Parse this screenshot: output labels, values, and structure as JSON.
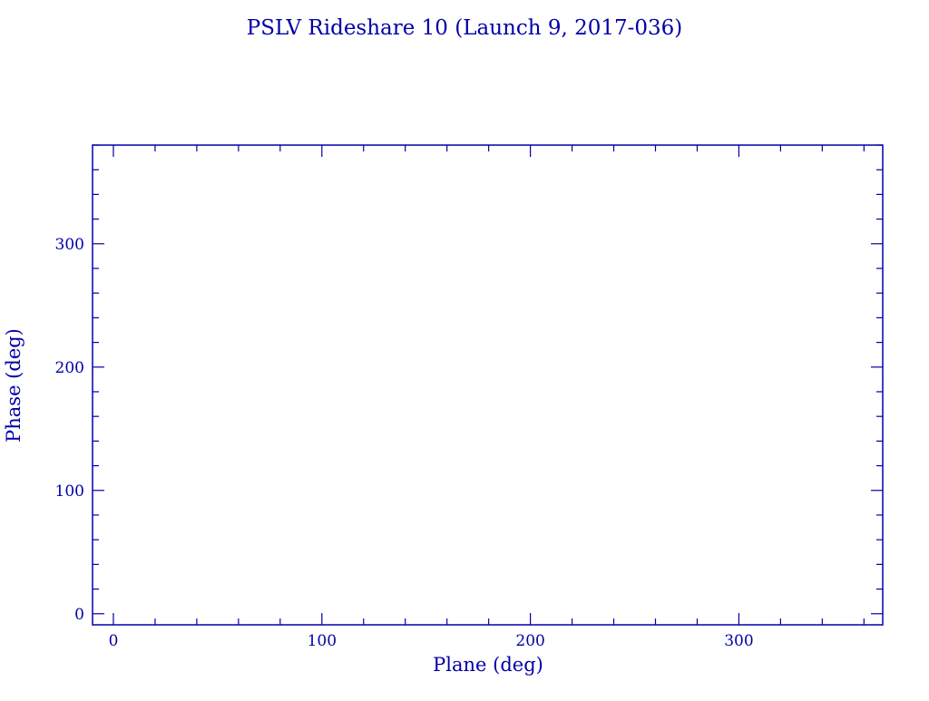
{
  "chart_data": {
    "type": "scatter",
    "title": "PSLV Rideshare 10 (Launch 9, 2017-036)",
    "xlabel": "Plane (deg)",
    "ylabel": "Phase (deg)",
    "xlim": [
      -10,
      369
    ],
    "ylim": [
      -9,
      380
    ],
    "xticks": [
      0,
      100,
      200,
      300
    ],
    "yticks": [
      0,
      100,
      200,
      300
    ],
    "minor_tick_step": 20,
    "grid": false,
    "points": [],
    "color": "#0000a8"
  }
}
